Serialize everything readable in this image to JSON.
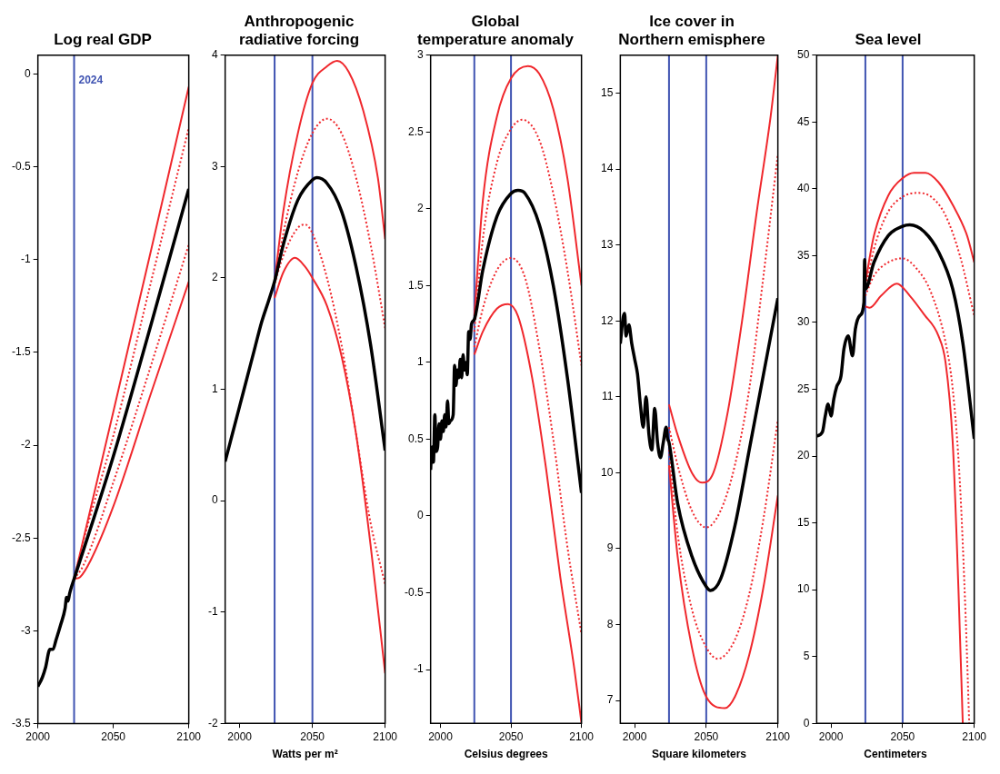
{
  "chart_data": [
    {
      "type": "line",
      "title": "Log real GDP",
      "xlim": [
        2000,
        2100
      ],
      "xticks": [
        2000,
        2050,
        2100
      ],
      "ylim": [
        -3.5,
        0.1
      ],
      "yticks": [
        -3.5,
        -3,
        -2.5,
        -2,
        -1.5,
        -1,
        -0.5,
        0
      ],
      "marker": "none",
      "ref_lines": [
        {
          "axis": "x",
          "value": 2024,
          "label": "2024",
          "color": "#4054b2"
        }
      ],
      "series": [
        {
          "color": "#000000",
          "line_style": "solid",
          "x": [
            2000,
            2003,
            2005,
            2008,
            2010,
            2012,
            2015,
            2018,
            2019,
            2020,
            2021,
            2022,
            2024,
            2050,
            2075,
            2100
          ],
          "values": [
            -3.3,
            -3.25,
            -3.2,
            -3.1,
            -3.1,
            -3.05,
            -2.97,
            -2.88,
            -2.82,
            -2.84,
            -2.8,
            -2.77,
            -2.72,
            -2.06,
            -1.35,
            -0.62
          ]
        },
        {
          "color": "#f0282d",
          "line_style": "solid",
          "x": [
            2024,
            2050,
            2075,
            2100
          ],
          "values": [
            -2.72,
            -1.82,
            -0.95,
            -0.07
          ]
        },
        {
          "color": "#f0282d",
          "line_style": "dotted",
          "x": [
            2024,
            2030,
            2050,
            2075,
            2100
          ],
          "values": [
            -2.72,
            -2.52,
            -1.95,
            -1.12,
            -0.29
          ]
        },
        {
          "color": "#f0282d",
          "line_style": "dotted",
          "x": [
            2024,
            2030,
            2050,
            2075,
            2100
          ],
          "values": [
            -2.72,
            -2.65,
            -2.2,
            -1.57,
            -0.92
          ]
        },
        {
          "color": "#f0282d",
          "line_style": "solid",
          "x": [
            2024,
            2028,
            2035,
            2050,
            2075,
            2100
          ],
          "values": [
            -2.72,
            -2.71,
            -2.62,
            -2.33,
            -1.72,
            -1.12
          ]
        }
      ]
    },
    {
      "type": "line",
      "title": "Anthropogenic radiative forcing",
      "xlabel": "Watts per m²",
      "xlim": [
        1990,
        2100
      ],
      "xticks": [
        2000,
        2050,
        2100
      ],
      "ylim": [
        -2,
        4
      ],
      "yticks": [
        -2,
        -1,
        0,
        1,
        2,
        3,
        4
      ],
      "marker": "none",
      "ref_lines": [
        {
          "axis": "x",
          "value": 2024,
          "color": "#4054b2"
        },
        {
          "axis": "x",
          "value": 2050,
          "color": "#4054b2"
        }
      ],
      "series": [
        {
          "color": "#000000",
          "line_style": "solid",
          "x": [
            1990,
            1995,
            2000,
            2005,
            2010,
            2015,
            2020,
            2024,
            2030,
            2040,
            2050,
            2053,
            2060,
            2070,
            2080,
            2090,
            2100
          ],
          "values": [
            0.35,
            0.6,
            0.85,
            1.1,
            1.35,
            1.6,
            1.8,
            1.97,
            2.3,
            2.7,
            2.88,
            2.9,
            2.85,
            2.6,
            2.1,
            1.4,
            0.45
          ]
        },
        {
          "color": "#f0282d",
          "line_style": "solid",
          "x": [
            2024,
            2030,
            2040,
            2050,
            2060,
            2067,
            2075,
            2085,
            2095,
            2100
          ],
          "values": [
            1.97,
            2.6,
            3.3,
            3.75,
            3.9,
            3.95,
            3.85,
            3.5,
            2.9,
            2.35
          ]
        },
        {
          "color": "#f0282d",
          "line_style": "dotted",
          "x": [
            2024,
            2030,
            2040,
            2050,
            2060,
            2070,
            2080,
            2090,
            2100
          ],
          "values": [
            1.95,
            2.4,
            2.95,
            3.3,
            3.43,
            3.3,
            2.9,
            2.3,
            1.55
          ]
        },
        {
          "color": "#f0282d",
          "line_style": "dotted",
          "x": [
            2024,
            2030,
            2040,
            2045,
            2050,
            2060,
            2070,
            2080,
            2090,
            2100
          ],
          "values": [
            1.95,
            2.2,
            2.45,
            2.48,
            2.4,
            2.0,
            1.4,
            0.6,
            -0.2,
            -0.75
          ]
        },
        {
          "color": "#f0282d",
          "line_style": "solid",
          "x": [
            2024,
            2030,
            2038,
            2045,
            2050,
            2060,
            2070,
            2080,
            2090,
            2100
          ],
          "values": [
            1.82,
            2.05,
            2.18,
            2.1,
            2.0,
            1.75,
            1.3,
            0.6,
            -0.4,
            -1.55
          ]
        }
      ]
    },
    {
      "type": "line",
      "title": "Global temperature anomaly",
      "xlabel": "Celsius degrees",
      "xlim": [
        1993,
        2100
      ],
      "xticks": [
        2000,
        2050,
        2100
      ],
      "ylim": [
        -1.35,
        3
      ],
      "yticks": [
        -1,
        -0.5,
        0,
        0.5,
        1,
        1.5,
        2,
        2.5,
        3
      ],
      "marker": "none",
      "ref_lines": [
        {
          "axis": "x",
          "value": 2024,
          "color": "#4054b2"
        },
        {
          "axis": "x",
          "value": 2050,
          "color": "#4054b2"
        }
      ],
      "series": [
        {
          "color": "#000000",
          "line_style": "solid",
          "x": [
            1993,
            1994,
            1995,
            1996,
            1997,
            1998,
            1999,
            2000,
            2001,
            2002,
            2003,
            2004,
            2005,
            2006,
            2007,
            2009,
            2010,
            2011,
            2012,
            2013,
            2014,
            2015,
            2016,
            2017,
            2018,
            2019,
            2020,
            2021,
            2022,
            2024,
            2030,
            2040,
            2050,
            2055,
            2060,
            2070,
            2080,
            2090,
            2100
          ],
          "values": [
            0.3,
            0.45,
            0.35,
            0.66,
            0.42,
            0.45,
            0.6,
            0.5,
            0.62,
            0.55,
            0.66,
            0.58,
            0.75,
            0.6,
            0.62,
            0.66,
            0.98,
            0.85,
            0.95,
            0.9,
            1.02,
            0.9,
            1.05,
            0.95,
            1.0,
            0.92,
            1.2,
            1.15,
            1.25,
            1.28,
            1.6,
            1.95,
            2.1,
            2.12,
            2.1,
            1.9,
            1.5,
            0.9,
            0.15
          ]
        },
        {
          "color": "#f0282d",
          "line_style": "solid",
          "x": [
            2024,
            2030,
            2040,
            2050,
            2062,
            2070,
            2080,
            2090,
            2100
          ],
          "values": [
            1.3,
            2.05,
            2.6,
            2.85,
            2.93,
            2.88,
            2.65,
            2.2,
            1.5
          ]
        },
        {
          "color": "#f0282d",
          "line_style": "dotted",
          "x": [
            2024,
            2030,
            2040,
            2050,
            2058,
            2070,
            2080,
            2090,
            2100
          ],
          "values": [
            1.2,
            1.8,
            2.3,
            2.52,
            2.58,
            2.45,
            2.1,
            1.6,
            0.98
          ]
        },
        {
          "color": "#f0282d",
          "line_style": "dotted",
          "x": [
            2024,
            2030,
            2040,
            2050,
            2060,
            2070,
            2080,
            2090,
            2100
          ],
          "values": [
            1.1,
            1.35,
            1.6,
            1.68,
            1.55,
            1.1,
            0.5,
            -0.2,
            -0.77
          ]
        },
        {
          "color": "#f0282d",
          "line_style": "solid",
          "x": [
            2024,
            2030,
            2040,
            2048,
            2055,
            2065,
            2075,
            2085,
            2095,
            2100
          ],
          "values": [
            1.05,
            1.2,
            1.35,
            1.38,
            1.3,
            0.9,
            0.3,
            -0.4,
            -1.0,
            -1.35
          ]
        }
      ]
    },
    {
      "type": "line",
      "title": "Ice cover in Northern emisphere",
      "xlabel": "Square kilometers",
      "xlim": [
        1990,
        2100
      ],
      "xticks": [
        2000,
        2050,
        2100
      ],
      "ylim": [
        6.7,
        15.5
      ],
      "yticks": [
        7,
        8,
        9,
        10,
        11,
        12,
        13,
        14,
        15
      ],
      "marker": "none",
      "ref_lines": [
        {
          "axis": "x",
          "value": 2024,
          "color": "#4054b2"
        },
        {
          "axis": "x",
          "value": 2050,
          "color": "#4054b2"
        }
      ],
      "series": [
        {
          "color": "#000000",
          "line_style": "solid",
          "x": [
            1990,
            1992,
            1993,
            1994,
            1996,
            1998,
            2000,
            2002,
            2004,
            2006,
            2008,
            2010,
            2012,
            2014,
            2016,
            2018,
            2020,
            2022,
            2023,
            2024,
            2030,
            2040,
            2050,
            2053,
            2060,
            2070,
            2080,
            2090,
            2100
          ],
          "values": [
            11.7,
            12.05,
            12.1,
            11.8,
            11.95,
            11.7,
            11.5,
            11.3,
            10.9,
            10.6,
            11.0,
            10.5,
            10.3,
            10.85,
            10.4,
            10.2,
            10.4,
            10.6,
            10.45,
            10.4,
            9.6,
            8.9,
            8.5,
            8.45,
            8.6,
            9.3,
            10.3,
            11.3,
            12.3
          ]
        },
        {
          "color": "#f0282d",
          "line_style": "solid",
          "x": [
            2024,
            2030,
            2040,
            2047,
            2055,
            2065,
            2075,
            2085,
            2095,
            2100
          ],
          "values": [
            10.9,
            10.5,
            10.0,
            9.87,
            10.0,
            10.8,
            12.0,
            13.4,
            14.7,
            15.5
          ]
        },
        {
          "color": "#f0282d",
          "line_style": "dotted",
          "x": [
            2024,
            2030,
            2040,
            2050,
            2060,
            2070,
            2080,
            2090,
            2100
          ],
          "values": [
            10.6,
            10.1,
            9.5,
            9.28,
            9.5,
            10.1,
            11.1,
            12.6,
            14.2
          ]
        },
        {
          "color": "#f0282d",
          "line_style": "dotted",
          "x": [
            2024,
            2030,
            2040,
            2050,
            2058,
            2070,
            2080,
            2090,
            2100
          ],
          "values": [
            10.3,
            9.2,
            8.2,
            7.7,
            7.55,
            7.8,
            8.4,
            9.4,
            10.7
          ]
        },
        {
          "color": "#f0282d",
          "line_style": "solid",
          "x": [
            2024,
            2030,
            2040,
            2050,
            2063,
            2070,
            2080,
            2090,
            2100
          ],
          "values": [
            10.1,
            8.9,
            7.7,
            7.05,
            6.9,
            7.05,
            7.6,
            8.5,
            9.7
          ]
        }
      ]
    },
    {
      "type": "line",
      "title": "Sea level",
      "xlabel": "Centimeters",
      "xlim": [
        1990,
        2100
      ],
      "xticks": [
        2000,
        2050,
        2100
      ],
      "ylim": [
        0,
        50
      ],
      "yticks": [
        0,
        5,
        10,
        15,
        20,
        25,
        30,
        35,
        40,
        45,
        50
      ],
      "marker": "none",
      "ref_lines": [
        {
          "axis": "x",
          "value": 2024,
          "color": "#4054b2"
        },
        {
          "axis": "x",
          "value": 2050,
          "color": "#4054b2"
        }
      ],
      "series": [
        {
          "color": "#000000",
          "line_style": "solid",
          "x": [
            1990,
            1994,
            1996,
            1998,
            2000,
            2002,
            2004,
            2007,
            2009,
            2012,
            2015,
            2017,
            2020,
            2023,
            2023.5,
            2024,
            2030,
            2040,
            2050,
            2055,
            2065,
            2075,
            2085,
            2092,
            2100
          ],
          "values": [
            21.5,
            21.8,
            23.0,
            23.9,
            23.0,
            24.3,
            25.2,
            26.0,
            28.0,
            29.0,
            27.5,
            29.5,
            30.5,
            31.5,
            34.7,
            32.5,
            34.5,
            36.5,
            37.2,
            37.3,
            36.8,
            35.3,
            32.5,
            28.5,
            21.3
          ]
        },
        {
          "color": "#f0282d",
          "line_style": "solid",
          "x": [
            2024,
            2030,
            2040,
            2050,
            2058,
            2066,
            2075,
            2085,
            2095,
            2100
          ],
          "values": [
            33,
            36.5,
            39.5,
            40.8,
            41.2,
            41.2,
            40.5,
            38.8,
            36.5,
            34.5
          ]
        },
        {
          "color": "#f0282d",
          "line_style": "dotted",
          "x": [
            2024,
            2030,
            2040,
            2050,
            2060,
            2070,
            2080,
            2090,
            2100
          ],
          "values": [
            32.5,
            35.5,
            38.3,
            39.4,
            39.7,
            39.4,
            38.0,
            35.0,
            30.5
          ]
        },
        {
          "color": "#f0282d",
          "line_style": "dotted",
          "x": [
            2024,
            2030,
            2040,
            2050,
            2060,
            2070,
            2080,
            2085,
            2090,
            2094,
            2096.5
          ],
          "values": [
            32,
            33.5,
            34.5,
            34.8,
            34.0,
            32.2,
            28.5,
            25,
            18,
            8,
            0
          ]
        },
        {
          "color": "#f0282d",
          "line_style": "solid",
          "x": [
            2024,
            2027,
            2035,
            2046,
            2055,
            2065,
            2075,
            2080,
            2085,
            2089,
            2092
          ],
          "values": [
            31.2,
            31.1,
            32.0,
            32.9,
            32.0,
            30.6,
            29,
            27,
            21,
            10,
            0
          ]
        }
      ]
    }
  ]
}
